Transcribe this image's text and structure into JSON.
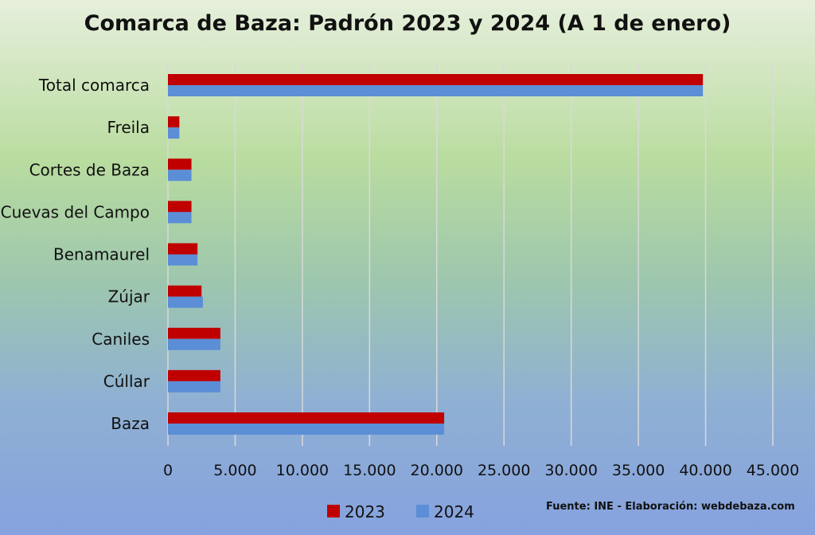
{
  "chart_data": {
    "type": "bar",
    "orientation": "horizontal",
    "title": "Comarca de Baza: Padrón 2023 y 2024 (A 1 de enero)",
    "categories": [
      "Total comarca",
      "Freila",
      "Cortes de Baza",
      "Cuevas del Campo",
      "Benamaurel",
      "Zújar",
      "Caniles",
      "Cúllar",
      "Baza"
    ],
    "series": [
      {
        "name": "2023",
        "color": "#c00000",
        "values": [
          39800,
          850,
          1750,
          1750,
          2200,
          2500,
          3900,
          3900,
          20550
        ]
      },
      {
        "name": "2024",
        "color": "#5b8ed6",
        "values": [
          39800,
          850,
          1750,
          1750,
          2200,
          2600,
          3900,
          3900,
          20550
        ]
      }
    ],
    "xlim": [
      0,
      45000
    ],
    "xticks": [
      0,
      5000,
      10000,
      15000,
      20000,
      25000,
      30000,
      35000,
      40000,
      45000
    ],
    "xtick_labels": [
      "0",
      "5.000",
      "10.000",
      "15.000",
      "20.000",
      "25.000",
      "30.000",
      "35.000",
      "40.000",
      "45.000"
    ],
    "grid": "vertical",
    "legend": "bottom",
    "source_note": "Fuente: INE - Elaboración: webdebaza.com"
  }
}
